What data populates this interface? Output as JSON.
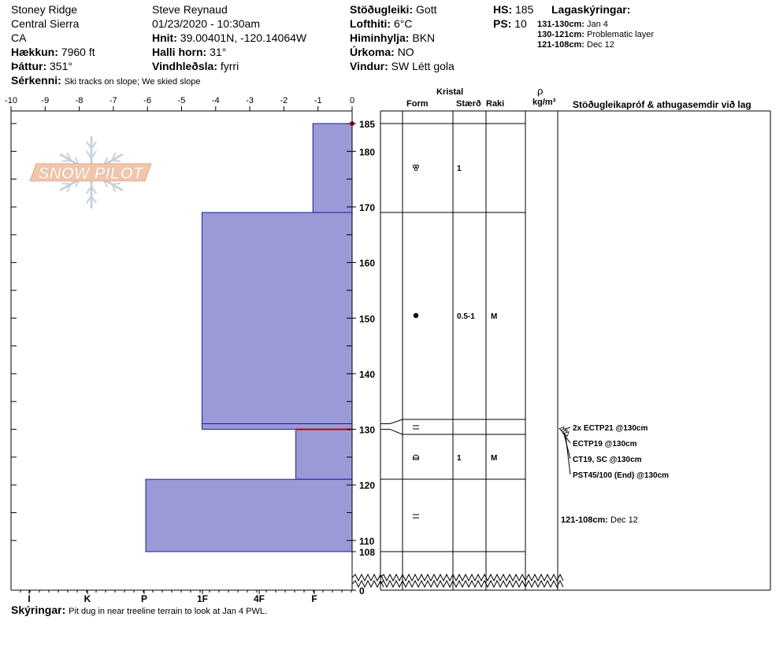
{
  "header": {
    "location": "Stoney Ridge",
    "range": "Central Sierra",
    "state": "CA",
    "elevation_label": "Hækkun:",
    "elevation_value": "7960 ft",
    "aspect_label": "Þáttur:",
    "aspect_value": "351°",
    "features_label": "Sérkenni:",
    "features_value": "Ski tracks on slope; We skied slope",
    "observer": "Steve Reynaud",
    "datetime": "01/23/2020 - 10:30am",
    "coords_label": "Hnit:",
    "coords_value": "39.00401N, -120.14064W",
    "slope_label": "Halli horn:",
    "slope_value": "31°",
    "wind_loading_label": "Vindhleðsla:",
    "wind_loading_value": "fyrri",
    "stability_label": "Stöðugleiki:",
    "stability_value": "Gott",
    "air_temp_label": "Lofthiti:",
    "air_temp_value": "6°C",
    "sky_label": "Himinhylja:",
    "sky_value": "BKN",
    "precip_label": "Úrkoma:",
    "precip_value": "NO",
    "wind_label": "Vindur:",
    "wind_value": "SW Létt gola",
    "hs_label": "HS:",
    "hs_value": "185",
    "ps_label": "PS:",
    "ps_value": "10",
    "layers_title": "Lagaskýringar:",
    "layer_notes": [
      {
        "range": "131-130cm:",
        "text": "Jan 4"
      },
      {
        "range": "130-121cm:",
        "text": "Problematic layer"
      },
      {
        "range": "121-108cm:",
        "text": "Dec 12"
      }
    ]
  },
  "logo": {
    "text": "SNOW PILOT"
  },
  "columns": {
    "crystal": "Kristal",
    "form": "Form",
    "size": "Stærð",
    "moisture": "Raki",
    "density_symbol": "ρ",
    "density_unit": "kg/m³",
    "tests": "Stöðugleikapróf & athugasemdir við lag"
  },
  "footer": {
    "comments_label": "Skýringar:",
    "comments_value": "Pit dug in near treeline terrain to look at Jan 4 PWL."
  },
  "chart_data": {
    "type": "bar",
    "top_axis": {
      "range": [
        -10,
        0
      ],
      "ticks": [
        -10,
        -9,
        -8,
        -7,
        -6,
        -5,
        -4,
        -3,
        -2,
        -1,
        0
      ]
    },
    "depth_axis": {
      "ticks": [
        0,
        108,
        110,
        120,
        130,
        140,
        150,
        160,
        170,
        180,
        185
      ],
      "break_below": 108
    },
    "hardness_ticks": [
      "I",
      "K",
      "P",
      "1F",
      "4F",
      "F"
    ],
    "layers": [
      {
        "top": 185,
        "bottom": 169,
        "hardness": 1.15,
        "form_icon": "rounding-faceted-icon",
        "size": "1",
        "moisture": ""
      },
      {
        "top": 169,
        "bottom": 131,
        "hardness": 4.4,
        "form_icon": "rounded-grain-icon",
        "size": "0.5-1",
        "moisture": "M"
      },
      {
        "top": 131,
        "bottom": 130,
        "hardness": 4.4,
        "form_icon": "",
        "size": "",
        "moisture": ""
      },
      {
        "top": 130,
        "bottom": 121,
        "hardness": 1.65,
        "form_icon": "depth-hoar-icon",
        "size": "1",
        "moisture": "M"
      },
      {
        "top": 121,
        "bottom": 108,
        "hardness": 6.05,
        "form_icon": "surface-hoar-icon",
        "size": "",
        "moisture": ""
      }
    ],
    "form_symbols": [
      {
        "depth": 130.5,
        "icon": "surface-hoar-icon"
      },
      {
        "depth": 115,
        "icon": "surface-hoar-icon"
      }
    ],
    "problem_layer_depth": 130,
    "tests": [
      {
        "depth": 130,
        "text": "2x ECTP21 @130cm"
      },
      {
        "depth": 130,
        "text": "ECTP19 @130cm"
      },
      {
        "depth": 130,
        "text": "CT19, SC @130cm"
      },
      {
        "depth": 130,
        "text": "PST45/100 (End) @130cm"
      }
    ],
    "layer_comment": {
      "depth": 115,
      "range": "121-108cm:",
      "text": "Dec 12"
    },
    "colors": {
      "profile_fill": "#9a9ad6",
      "profile_edge": "#1a1aa8",
      "problem_line": "#cc0000",
      "marker": "#aa2222"
    }
  }
}
